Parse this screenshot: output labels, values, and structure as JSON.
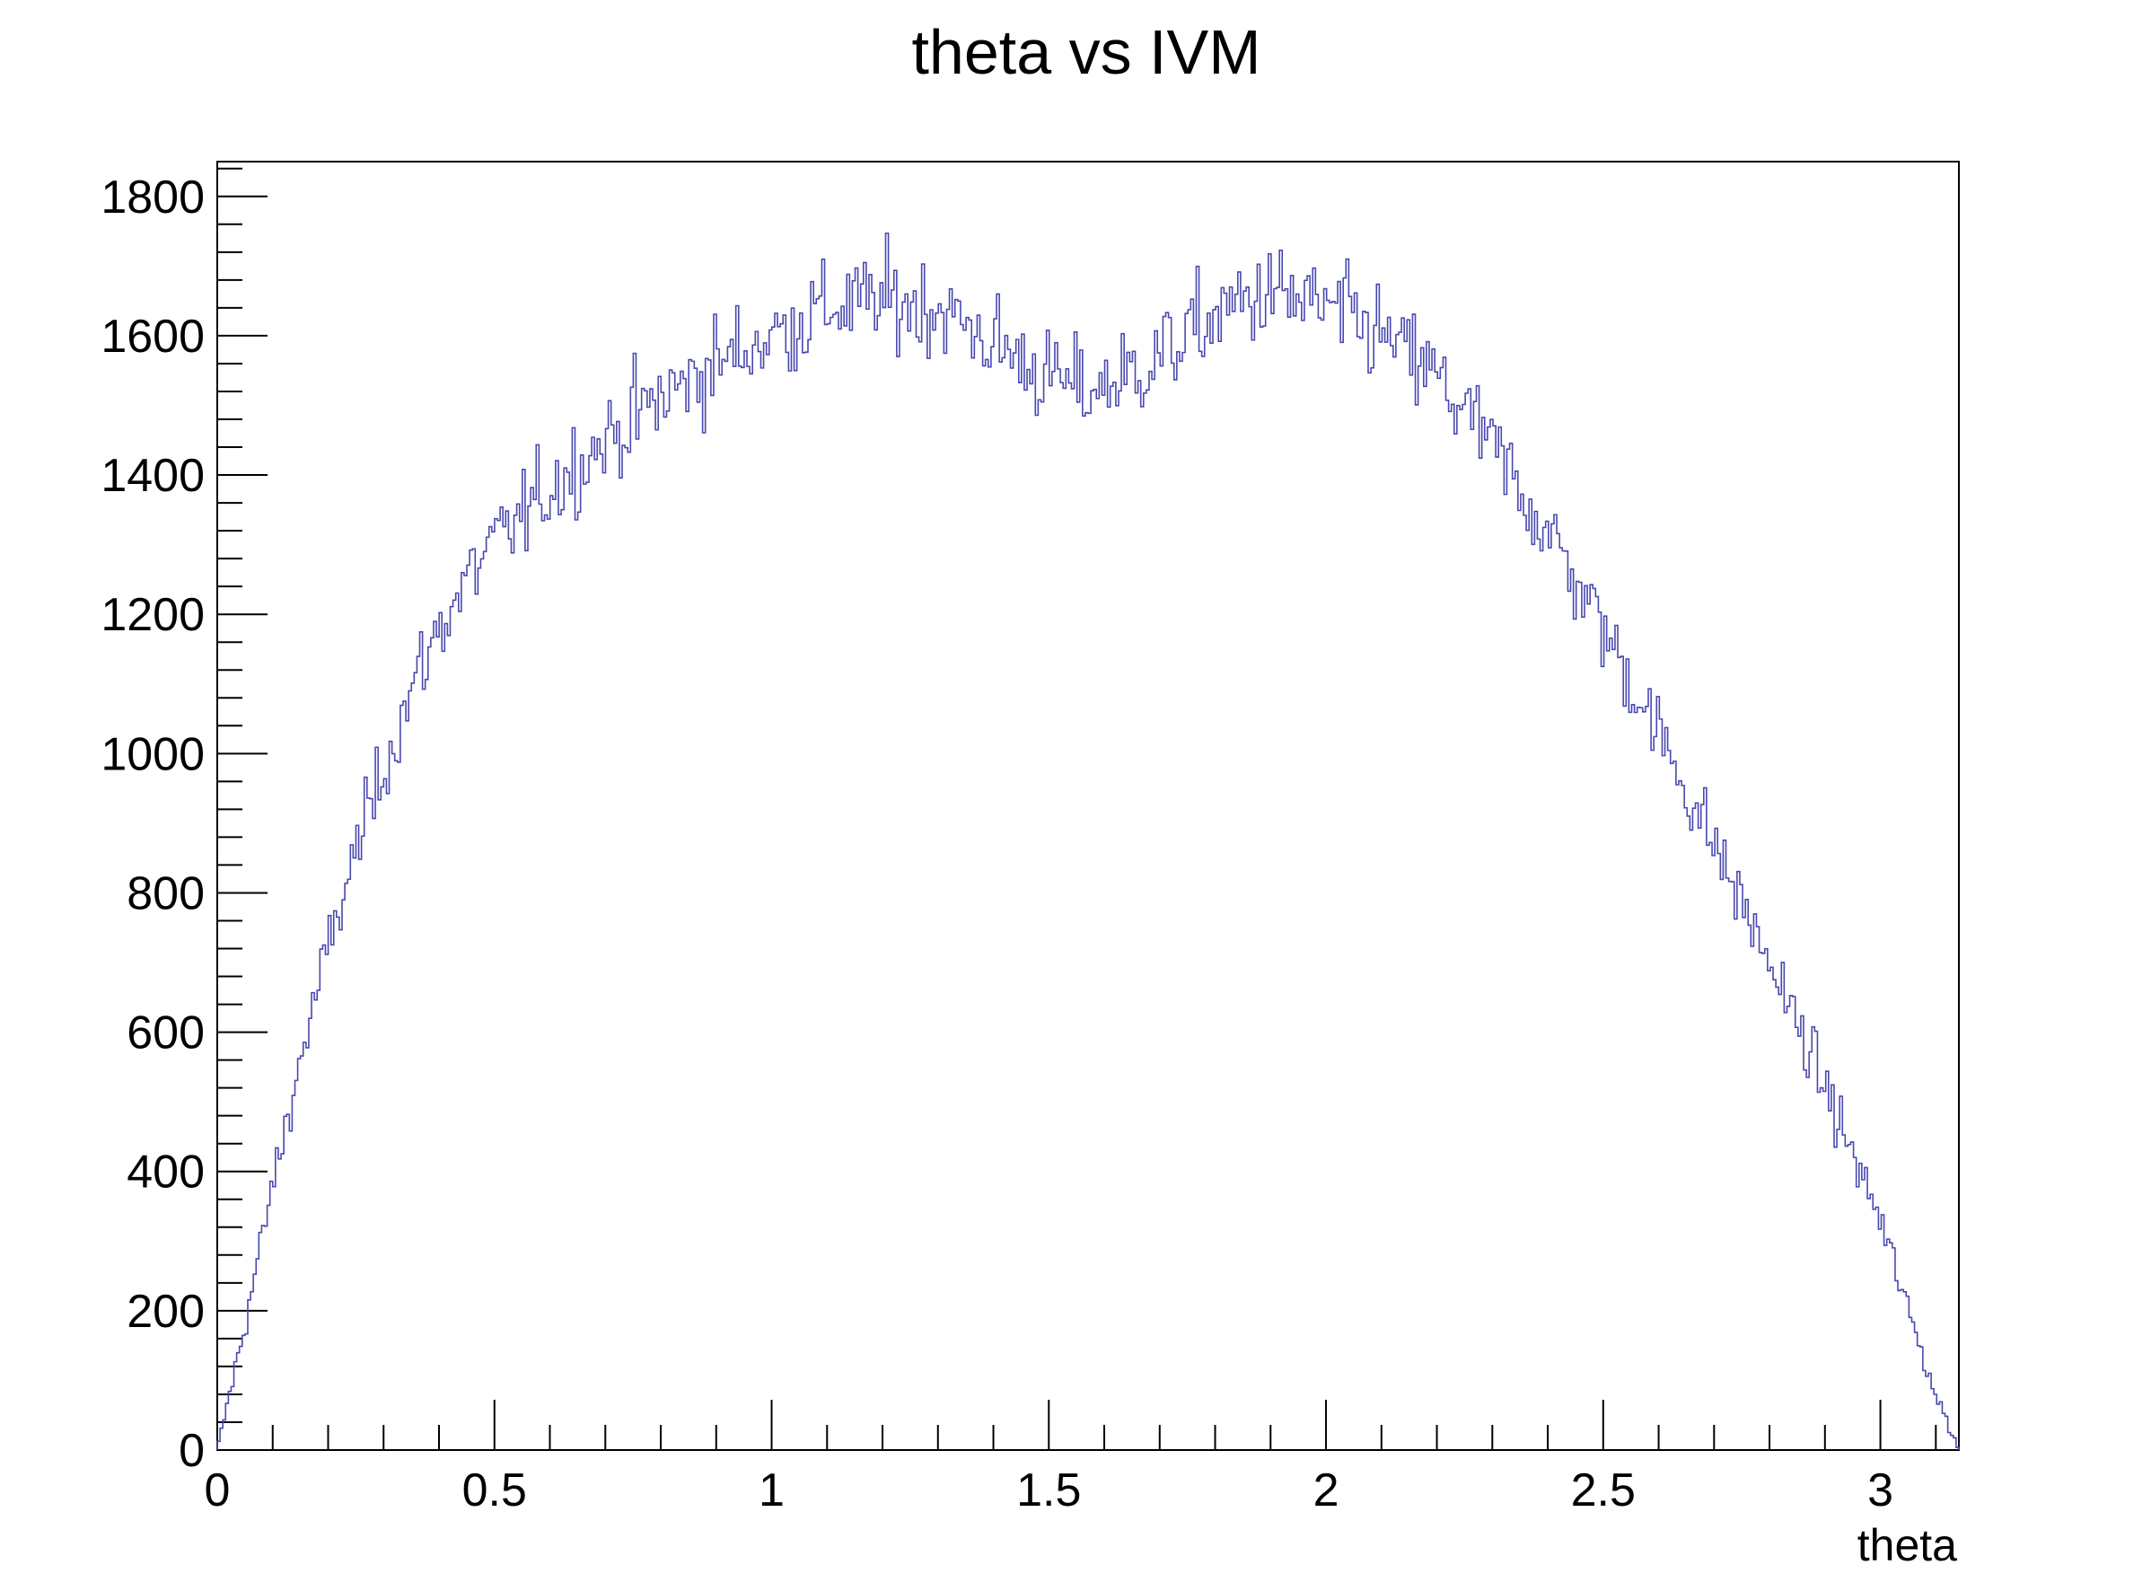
{
  "chart_data": {
    "type": "histogram",
    "title": "theta vs IVM",
    "xlabel": "theta",
    "ylabel": "",
    "xlim": [
      0,
      3.1416
    ],
    "ylim": [
      0,
      1850
    ],
    "x_ticks": [
      0,
      0.5,
      1,
      1.5,
      2,
      2.5,
      3
    ],
    "x_tick_labels": [
      "0",
      "0.5",
      "1",
      "1.5",
      "2",
      "2.5",
      "3"
    ],
    "y_ticks": [
      0,
      200,
      400,
      600,
      800,
      1000,
      1200,
      1400,
      1600,
      1800
    ],
    "y_tick_labels": [
      "0",
      "200",
      "400",
      "600",
      "800",
      "1000",
      "1200",
      "1400",
      "1600",
      "1800"
    ],
    "grid": false,
    "legend": "none",
    "line_color": "#4848b0",
    "bin_count": 628,
    "envelope_x": [
      0,
      0.05,
      0.1,
      0.15,
      0.2,
      0.25,
      0.3,
      0.35,
      0.4,
      0.45,
      0.5,
      0.6,
      0.7,
      0.8,
      0.9,
      1.0,
      1.1,
      1.2,
      1.3,
      1.4,
      1.5,
      1.57,
      1.65,
      1.75,
      1.85,
      1.9,
      2.0,
      2.1,
      2.2,
      2.3,
      2.4,
      2.5,
      2.6,
      2.7,
      2.8,
      2.9,
      3.0,
      3.05,
      3.1,
      3.1416
    ],
    "envelope_y": [
      0,
      180,
      380,
      560,
      720,
      860,
      980,
      1090,
      1180,
      1250,
      1300,
      1380,
      1450,
      1510,
      1560,
      1600,
      1640,
      1650,
      1640,
      1590,
      1540,
      1520,
      1545,
      1600,
      1650,
      1660,
      1640,
      1600,
      1540,
      1440,
      1320,
      1180,
      1030,
      870,
      700,
      520,
      330,
      200,
      80,
      0
    ],
    "fluctuation": 35
  }
}
